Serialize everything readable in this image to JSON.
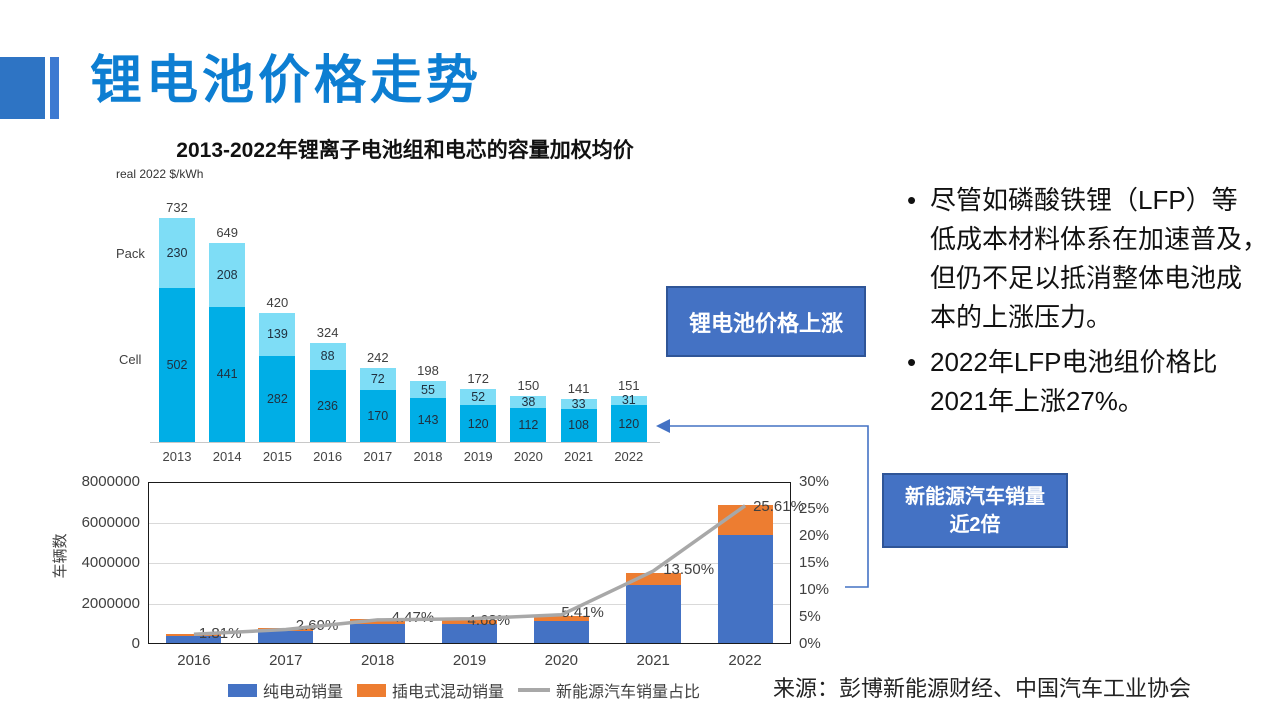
{
  "slide": {
    "title": "锂电池价格走势",
    "source": "来源：彭博新能源财经、中国汽车工业协会",
    "accent_title_color": "#0d7ed2",
    "callout_fill": "#4472c4",
    "callout_border": "#2f5597"
  },
  "bullets": {
    "marker": "•",
    "items": [
      {
        "text": "尽管如磷酸铁锂（LFP）等\n低成本材料体系在加速普及，\n但仍不足以抵消整体电池成\n本的上涨压力。"
      },
      {
        "text": "2022年LFP电池组价格比\n2021年上涨27%。"
      }
    ]
  },
  "callouts": {
    "price_rise": "锂电池价格上涨",
    "nev": "新能源汽车销量\n近2倍"
  },
  "chart_data": [
    {
      "type": "bar",
      "stacked": true,
      "title": "2013-2022年锂离子电池组和电芯的容量加权均价",
      "unit_label": "real 2022 $/kWh",
      "row_labels": [
        "Pack",
        "Cell"
      ],
      "categories": [
        "2013",
        "2014",
        "2015",
        "2016",
        "2017",
        "2018",
        "2019",
        "2020",
        "2021",
        "2022"
      ],
      "series": [
        {
          "name": "Cell",
          "color": "#00aee6",
          "values": [
            502,
            441,
            282,
            236,
            170,
            143,
            120,
            112,
            108,
            120
          ]
        },
        {
          "name": "Pack",
          "color": "#7eddf6",
          "values": [
            230,
            208,
            139,
            88,
            72,
            55,
            52,
            38,
            33,
            31
          ]
        }
      ],
      "totals": [
        732,
        649,
        420,
        324,
        242,
        198,
        172,
        150,
        141,
        151
      ],
      "legend_position": "none",
      "grid": false
    },
    {
      "type": "bar+line",
      "stacked": true,
      "categories": [
        "2016",
        "2017",
        "2018",
        "2019",
        "2020",
        "2021",
        "2022"
      ],
      "ylabel": "车辆数",
      "left_axis": {
        "ticks": [
          "0",
          "2000000",
          "4000000",
          "6000000",
          "8000000"
        ],
        "min": 0,
        "max": 8000000
      },
      "right_axis": {
        "ticks": [
          "0%",
          "5%",
          "10%",
          "15%",
          "20%",
          "25%",
          "30%"
        ],
        "min": 0,
        "max": 30
      },
      "series": [
        {
          "name": "纯电动销量",
          "type": "bar",
          "color": "#4472c4",
          "values": [
            409000,
            652000,
            984000,
            972000,
            1115000,
            2916000,
            5365000
          ]
        },
        {
          "name": "插电式混动销量",
          "type": "bar",
          "color": "#ed7d31",
          "values": [
            98000,
            125000,
            271000,
            232000,
            251000,
            603000,
            1518000
          ]
        },
        {
          "name": "新能源汽车销量占比",
          "type": "line",
          "color": "#a8a8a8",
          "values": [
            1.81,
            2.69,
            4.47,
            4.68,
            5.41,
            13.5,
            25.61
          ],
          "labels": [
            "1.81%",
            "2.69%",
            "4.47%",
            "4.68%",
            "5.41%",
            "13.50%",
            "25.61%"
          ]
        }
      ],
      "legend_position": "bottom",
      "grid": true
    }
  ]
}
